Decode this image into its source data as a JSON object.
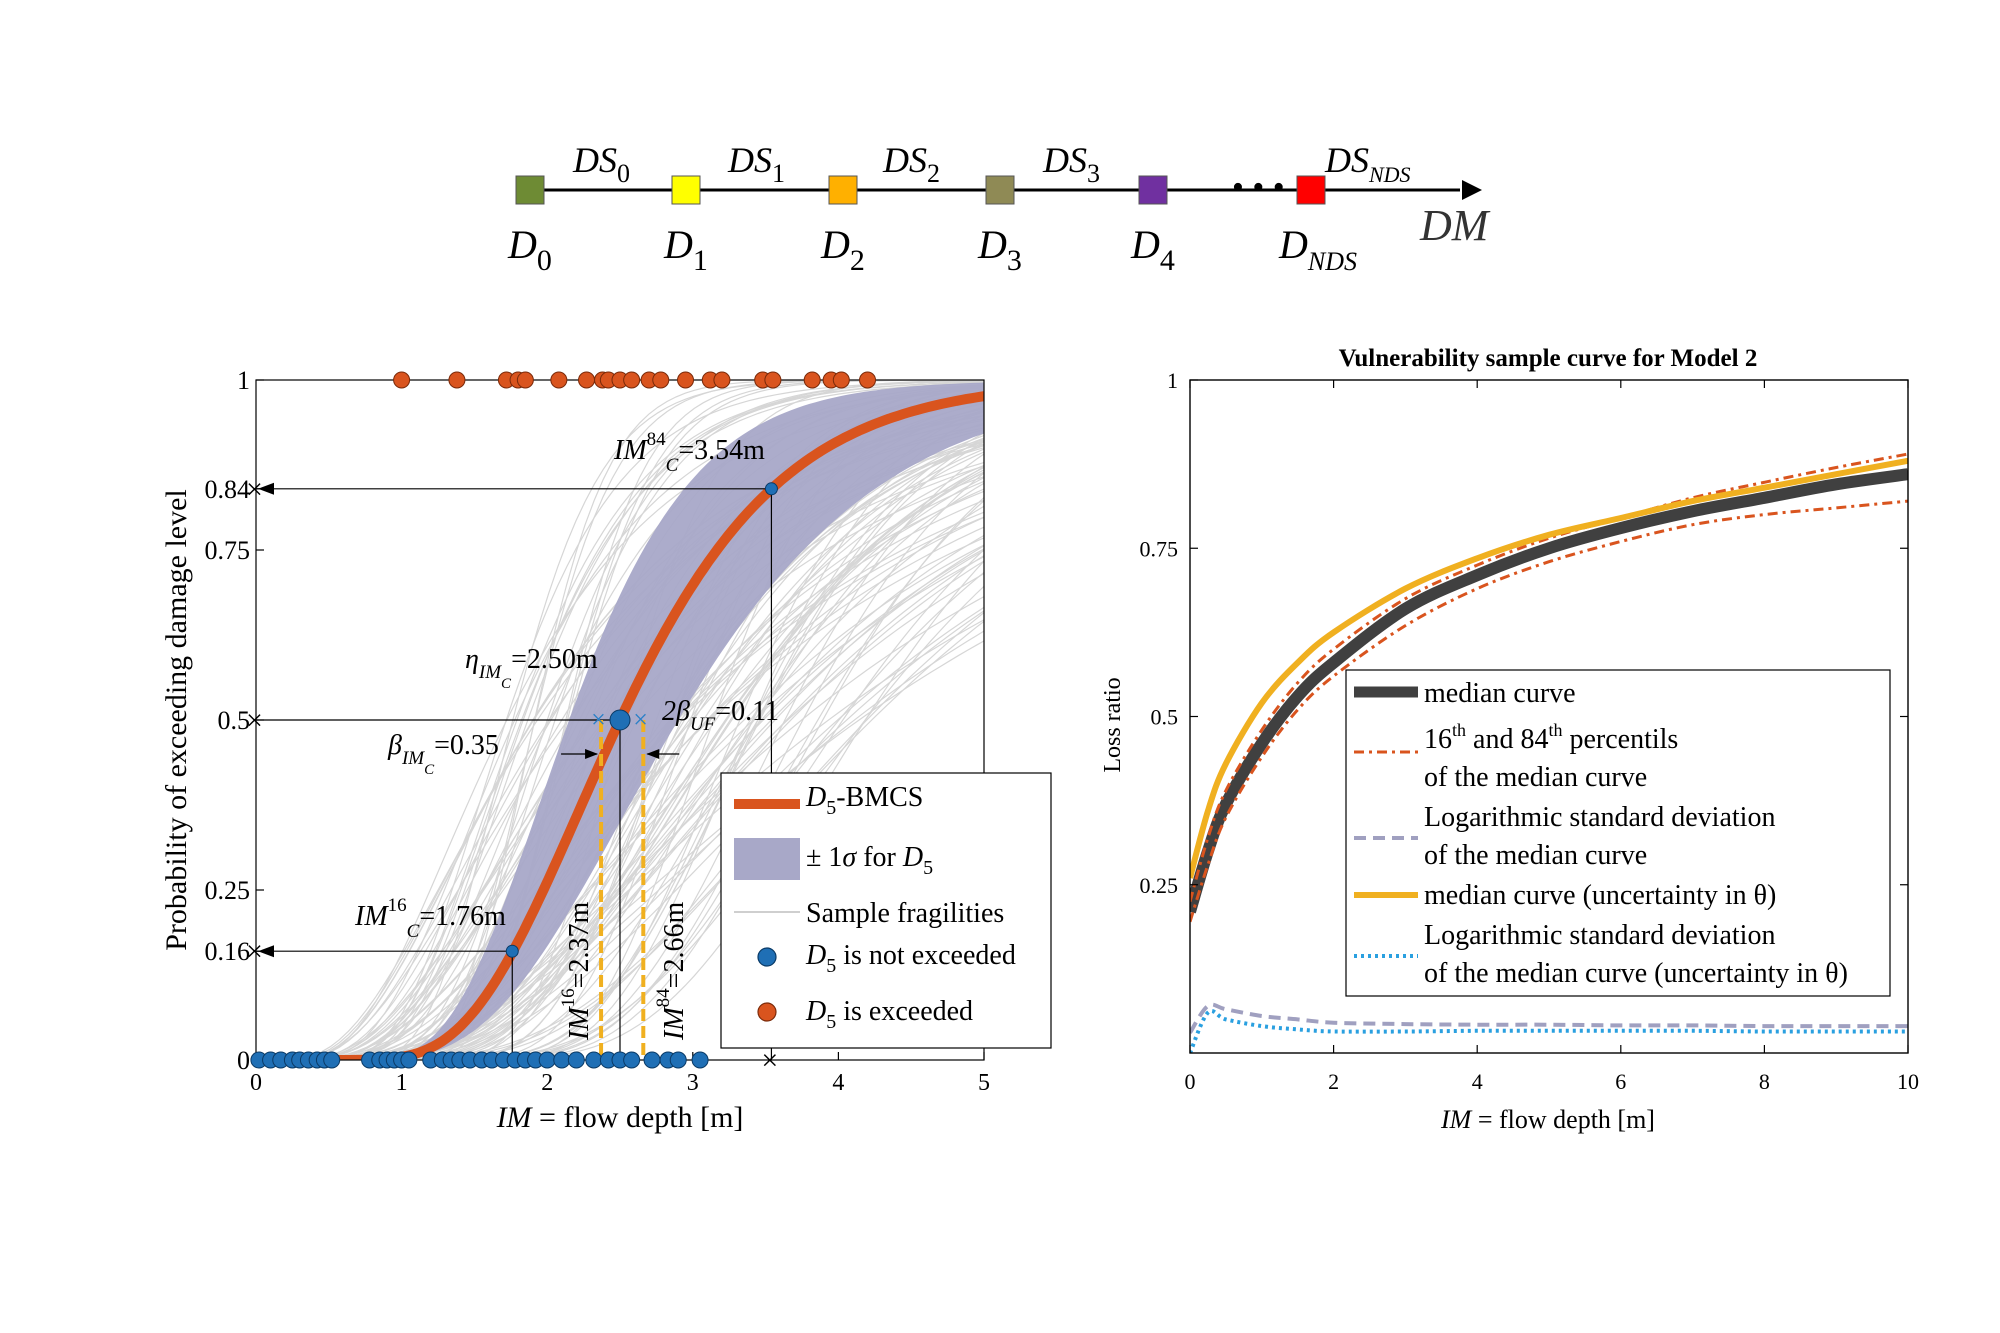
{
  "scale_diagram": {
    "end_label": "DM",
    "ellipsis": "• • •",
    "nodes": [
      {
        "base": "D",
        "sub": "0",
        "color": "#6e8b34"
      },
      {
        "base": "D",
        "sub": "1",
        "color": "#ffff00"
      },
      {
        "base": "D",
        "sub": "2",
        "color": "#ffb000"
      },
      {
        "base": "D",
        "sub": "3",
        "color": "#8f8a55"
      },
      {
        "base": "D",
        "sub": "4",
        "color": "#7030a0"
      },
      {
        "base": "D",
        "sub": "NDS",
        "color": "#ff0000"
      }
    ],
    "states": [
      {
        "base": "DS",
        "sub": "0"
      },
      {
        "base": "DS",
        "sub": "1"
      },
      {
        "base": "DS",
        "sub": "2"
      },
      {
        "base": "DS",
        "sub": "3"
      },
      {
        "base": "DS",
        "sub": "NDS"
      }
    ]
  },
  "chart_data": [
    {
      "type": "line",
      "title": "",
      "xlabel": "IM = flow depth [m]",
      "ylabel": "Probability of exceeding damage level",
      "xlim": [
        0,
        5
      ],
      "ylim": [
        0,
        1
      ],
      "xticks": [
        "0",
        "1",
        "2",
        "3",
        "4",
        "5"
      ],
      "yticks": [
        {
          "label": "0",
          "value": 0
        },
        {
          "label": "0.16",
          "value": 0.16
        },
        {
          "label": "0.25",
          "value": 0.25
        },
        {
          "label": "0.5",
          "value": 0.5
        },
        {
          "label": "0.75",
          "value": 0.75
        },
        {
          "label": "0.84",
          "value": 0.84
        },
        {
          "label": "1",
          "value": 1
        }
      ],
      "median_curve": {
        "name": "D5-BMCS",
        "eta": 2.5,
        "beta": 0.35,
        "color": "#d9541e"
      },
      "band": {
        "name": "± 1σ for D5",
        "color": "#a8a8c8"
      },
      "samples": {
        "name": "Sample fragilities",
        "color": "#d6d6d6"
      },
      "not_exceeded": {
        "name": "D5 is not exceeded",
        "color": "#1f6fb5",
        "x": [
          0.02,
          0.1,
          0.17,
          0.25,
          0.3,
          0.36,
          0.42,
          0.47,
          0.52,
          0.78,
          0.85,
          0.9,
          0.95,
          1.0,
          1.05,
          1.2,
          1.28,
          1.34,
          1.4,
          1.47,
          1.55,
          1.62,
          1.7,
          1.78,
          1.85,
          1.92,
          2.0,
          2.1,
          2.2,
          2.32,
          2.42,
          2.5,
          2.58,
          2.72,
          2.83,
          2.9,
          3.05
        ]
      },
      "exceeded": {
        "name": "D5 is exceeded",
        "color": "#d9541e",
        "x": [
          1.0,
          1.38,
          1.72,
          1.8,
          1.85,
          2.08,
          2.27,
          2.38,
          2.42,
          2.5,
          2.58,
          2.7,
          2.78,
          2.95,
          3.12,
          3.2,
          3.48,
          3.55,
          3.82,
          3.95,
          4.02,
          4.2
        ]
      },
      "annotations": [
        {
          "prefix": "IM",
          "sup": "84",
          "sub": "C",
          "value": "=3.54m"
        },
        {
          "prefix": "η",
          "sub": "IM",
          "subsub": "C",
          "value": "=2.50m"
        },
        {
          "prefix": "2β",
          "sub": "UF",
          "value": "=0.11"
        },
        {
          "prefix": "β",
          "sub": "IM",
          "subsub": "C",
          "value": "=0.35"
        },
        {
          "prefix": "IM",
          "sup": "16",
          "sub": "C",
          "value": "=1.76m"
        },
        {
          "prefix": "IM",
          "sup": "16",
          "value": "=2.37m"
        },
        {
          "prefix": "IM",
          "sup": "84",
          "value": "=2.66m"
        }
      ],
      "markers": {
        "im16": 1.76,
        "im84": 3.54,
        "eta": 2.5,
        "uf16": 2.37,
        "uf84": 2.66
      }
    },
    {
      "type": "line",
      "title": "Vulnerability sample curve for Model 2",
      "xlabel": "IM = flow depth [m]",
      "ylabel": "Loss ratio",
      "xlim": [
        0,
        10
      ],
      "ylim": [
        0,
        1
      ],
      "xticks": [
        "0",
        "2",
        "4",
        "6",
        "8",
        "10"
      ],
      "yticks": [
        {
          "label": "0.25",
          "value": 0.25
        },
        {
          "label": "0.5",
          "value": 0.5
        },
        {
          "label": "0.75",
          "value": 0.75
        },
        {
          "label": "1",
          "value": 1
        }
      ],
      "x": [
        0,
        0.25,
        0.5,
        1,
        1.5,
        2,
        3,
        4,
        5,
        6,
        7,
        8,
        9,
        10
      ],
      "series": [
        {
          "name": "median curve",
          "color": "#404040",
          "style": "solid-thick",
          "values": [
            0.21,
            0.3,
            0.37,
            0.46,
            0.53,
            0.58,
            0.66,
            0.71,
            0.75,
            0.78,
            0.805,
            0.825,
            0.845,
            0.86
          ]
        },
        {
          "name": "16th and 84th percentils of the median curve",
          "color": "#d9541e",
          "style": "dashdot",
          "values": [
            0.225,
            0.32,
            0.39,
            0.48,
            0.55,
            0.6,
            0.675,
            0.725,
            0.765,
            0.795,
            0.825,
            0.848,
            0.87,
            0.89
          ]
        },
        {
          "name": "16th and 84th percentils of the median curve (lower)",
          "color": "#d9541e",
          "style": "dashdot",
          "values": [
            0.195,
            0.28,
            0.35,
            0.44,
            0.51,
            0.56,
            0.635,
            0.69,
            0.73,
            0.76,
            0.785,
            0.8,
            0.81,
            0.82
          ]
        },
        {
          "name": "Logarithmic standard deviation of the median curve",
          "color": "#a0a0c0",
          "style": "dashed",
          "values": [
            0.03,
            0.07,
            0.065,
            0.055,
            0.05,
            0.045,
            0.043,
            0.042,
            0.042,
            0.041,
            0.041,
            0.04,
            0.04,
            0.04
          ]
        },
        {
          "name": "median curve (uncertainty in θ)",
          "color": "#f0b020",
          "style": "solid",
          "values": [
            0.26,
            0.36,
            0.43,
            0.52,
            0.58,
            0.625,
            0.69,
            0.735,
            0.77,
            0.795,
            0.82,
            0.84,
            0.86,
            0.88
          ]
        },
        {
          "name": "Logarithmic standard deviation of the median curve (uncertainty in θ)",
          "color": "#2aa0e0",
          "style": "dotted",
          "values": [
            0.0,
            0.06,
            0.05,
            0.04,
            0.035,
            0.032,
            0.032,
            0.033,
            0.033,
            0.033,
            0.033,
            0.032,
            0.032,
            0.032
          ]
        }
      ],
      "legend": {
        "position": "center-right",
        "entries": [
          {
            "lines": [
              "median curve"
            ]
          },
          {
            "lines": [
              "16th and 84th percentils",
              "of the median curve"
            ]
          },
          {
            "lines": [
              "Logarithmic standard deviation",
              "of the median curve"
            ]
          },
          {
            "lines": [
              "median curve (uncertainty in θ)"
            ]
          },
          {
            "lines": [
              "Logarithmic standard deviation",
              "of the median curve  (uncertainty in θ)"
            ]
          }
        ]
      }
    }
  ]
}
